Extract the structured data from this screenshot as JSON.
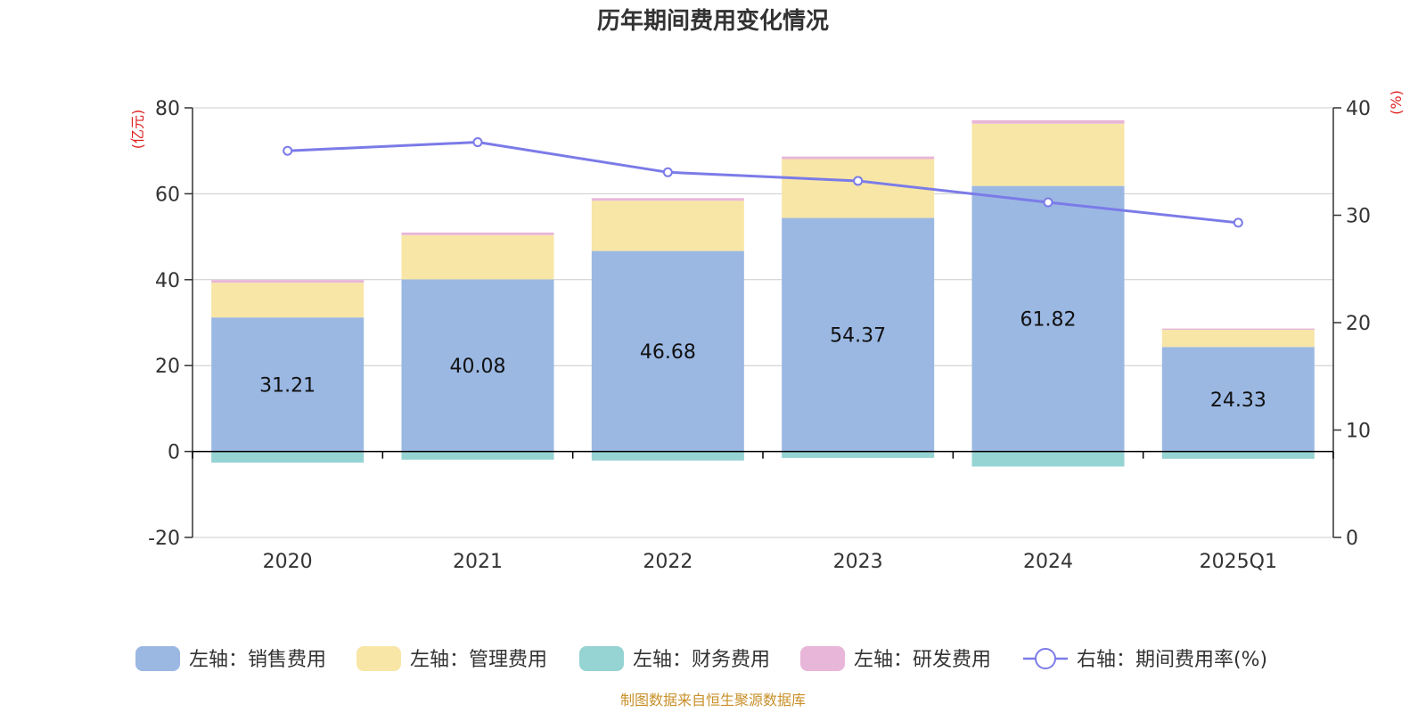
{
  "chart_data": {
    "type": "bar",
    "title": "历年期间费用变化情况",
    "categories": [
      "2020",
      "2021",
      "2022",
      "2023",
      "2024",
      "2025Q1"
    ],
    "series": [
      {
        "name": "左轴：销售费用",
        "axis": "left",
        "color": "#9bb8e3",
        "values": [
          31.21,
          40.08,
          46.68,
          54.37,
          61.82,
          24.33
        ],
        "show_labels": true
      },
      {
        "name": "左轴：管理费用",
        "axis": "left",
        "color": "#f7e6a6",
        "values": [
          8.1,
          10.3,
          11.7,
          13.7,
          14.5,
          4.0
        ],
        "show_labels": false
      },
      {
        "name": "左轴：财务费用",
        "axis": "left",
        "color": "#96d3d3",
        "values": [
          -2.6,
          -1.9,
          -2.1,
          -1.5,
          -3.5,
          -1.7
        ],
        "show_labels": false
      },
      {
        "name": "左轴：研发费用",
        "axis": "left",
        "color": "#e8b6d8",
        "values": [
          0.6,
          0.6,
          0.6,
          0.6,
          0.8,
          0.3
        ],
        "show_labels": false
      },
      {
        "name": "右轴：期间费用率(%)",
        "axis": "right",
        "type": "line",
        "color": "#7b7be8",
        "values": [
          36.0,
          36.8,
          34.0,
          33.2,
          31.2,
          29.3
        ]
      }
    ],
    "y_left": {
      "label": "(亿元)",
      "ticks": [
        "80",
        "60",
        "40",
        "20",
        "0",
        "-20"
      ],
      "min": -20,
      "max": 80
    },
    "y_right": {
      "label": "(%)",
      "ticks": [
        "40",
        "30",
        "20",
        "10",
        "0"
      ],
      "min": 0,
      "max": 40
    },
    "grid": true,
    "legend_position": "bottom",
    "source": "制图数据来自恒生聚源数据库",
    "colors": {
      "axis_label": "#e02020",
      "source": "#c8902a",
      "grid": "#cccccc",
      "axis": "#333333"
    }
  }
}
